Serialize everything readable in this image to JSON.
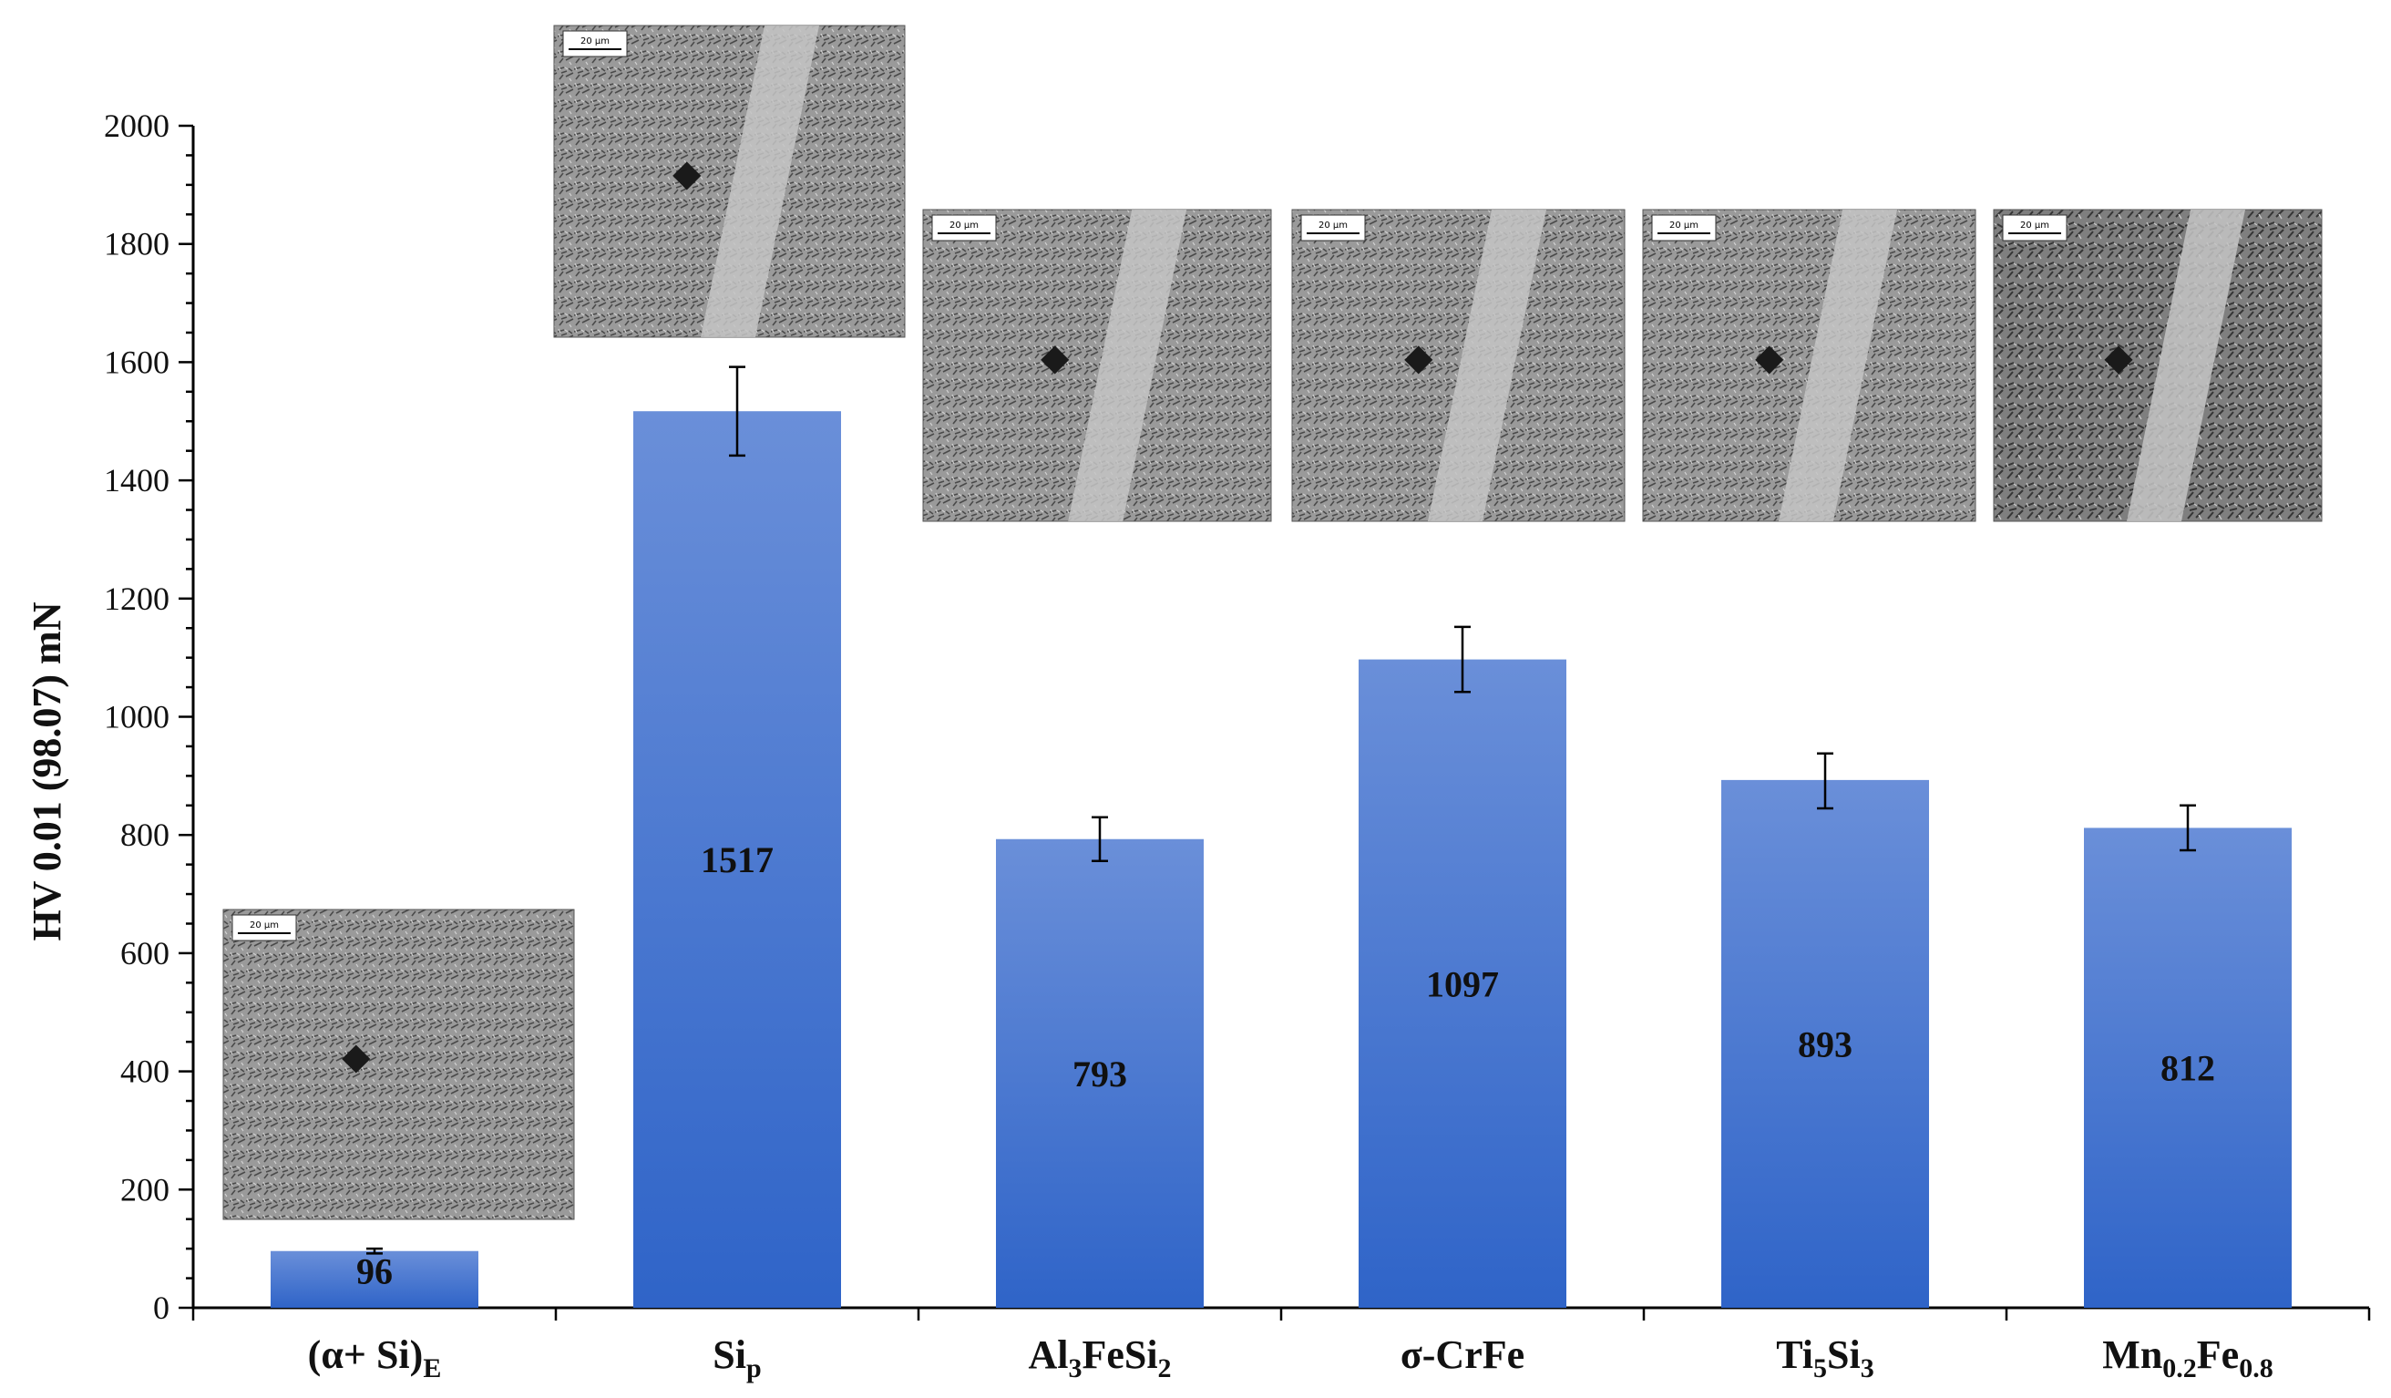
{
  "chart_data": {
    "type": "bar",
    "ylabel": "HV 0.01 (98.07) mN",
    "ylim": [
      0,
      2000
    ],
    "yticks": [
      0,
      200,
      400,
      600,
      800,
      1000,
      1200,
      1400,
      1600,
      1800,
      2000
    ],
    "categories": [
      {
        "id": "alpha-si",
        "parts": [
          {
            "t": "(α+ Si)"
          },
          {
            "t": "E",
            "sub": true
          }
        ]
      },
      {
        "id": "si-p",
        "parts": [
          {
            "t": "Si"
          },
          {
            "t": "p",
            "sub": true
          }
        ]
      },
      {
        "id": "al3fesi2",
        "parts": [
          {
            "t": "Al"
          },
          {
            "t": "3",
            "sub": true
          },
          {
            "t": "FeSi"
          },
          {
            "t": "2",
            "sub": true
          }
        ]
      },
      {
        "id": "sigma-crfe",
        "parts": [
          {
            "t": "σ-CrFe"
          }
        ]
      },
      {
        "id": "ti5si3",
        "parts": [
          {
            "t": "Ti"
          },
          {
            "t": "5",
            "sub": true
          },
          {
            "t": "Si"
          },
          {
            "t": "3",
            "sub": true
          }
        ]
      },
      {
        "id": "mn02fe08",
        "parts": [
          {
            "t": "Mn"
          },
          {
            "t": "0.2",
            "sub": true
          },
          {
            "t": "Fe"
          },
          {
            "t": "0.8",
            "sub": true
          }
        ]
      }
    ],
    "values": [
      96,
      1517,
      793,
      1097,
      893,
      812
    ],
    "value_labels": [
      "96",
      "1517",
      "793",
      "1097",
      "893",
      "812"
    ],
    "error": [
      [
        92,
        100
      ],
      [
        1442,
        1592
      ],
      [
        756,
        830
      ],
      [
        1042,
        1152
      ],
      [
        845,
        938
      ],
      [
        774,
        850
      ]
    ],
    "bar_color_top": "#6a8fd9",
    "bar_color_bottom": "#2f64c8",
    "grid": false,
    "legend": "none",
    "micrograph_insets": [
      {
        "id": "micrograph-alpha-si",
        "scale_label": "20 µm"
      },
      {
        "id": "micrograph-si-p",
        "scale_label": "20 µm"
      },
      {
        "id": "micrograph-al3fesi2",
        "scale_label": "20 µm"
      },
      {
        "id": "micrograph-sigma-crfe",
        "scale_label": "20 µm"
      },
      {
        "id": "micrograph-ti5si3",
        "scale_label": "20 µm"
      },
      {
        "id": "micrograph-mn02fe08",
        "scale_label": "20 µm"
      }
    ]
  }
}
